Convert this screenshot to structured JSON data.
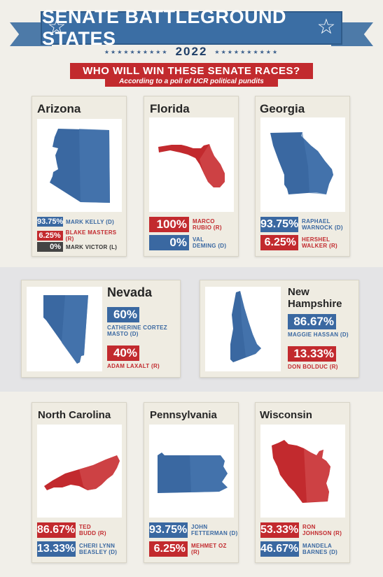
{
  "header": {
    "title": "SENATE BATTLEGROUND STATES",
    "year": "2022",
    "question": "WHO WILL WIN THESE SENATE RACES?",
    "subtitle": "According to a poll of UCR political pundits"
  },
  "colors": {
    "blue": "#3a68a1",
    "red": "#c22a2e",
    "dark": "#444444",
    "banner": "#3b6ea4"
  },
  "states": {
    "arizona": {
      "name": "Arizona",
      "winner_color": "blue",
      "candidates": [
        {
          "pct": "93.75%",
          "name": "MARK KELLY (D)",
          "color": "blue"
        },
        {
          "pct": "6.25%",
          "name": "BLAKE MASTERS (R)",
          "color": "red"
        },
        {
          "pct": "0%",
          "name": "MARK VICTOR (L)",
          "color": "dark"
        }
      ]
    },
    "florida": {
      "name": "Florida",
      "winner_color": "red",
      "candidates": [
        {
          "pct": "100%",
          "name_line1": "MARCO",
          "name_line2": "RUBIO (R)",
          "color": "red"
        },
        {
          "pct": "0%",
          "name_line1": "VAL",
          "name_line2": "DEMING (D)",
          "color": "blue"
        }
      ]
    },
    "georgia": {
      "name": "Georgia",
      "winner_color": "blue",
      "candidates": [
        {
          "pct": "93.75%",
          "name_line1": "RAPHAEL",
          "name_line2": "WARNOCK (D)",
          "color": "blue"
        },
        {
          "pct": "6.25%",
          "name_line1": "HERSHEL",
          "name_line2": "WALKER (R)",
          "color": "red"
        }
      ]
    },
    "nevada": {
      "name": "Nevada",
      "winner_color": "blue",
      "candidates": [
        {
          "pct": "60%",
          "name_line1": "CATHERINE CORTEZ",
          "name_line2": "MASTO (D)",
          "color": "blue"
        },
        {
          "pct": "40%",
          "name_line1": "ADAM LAXALT (R)",
          "name_line2": "",
          "color": "red"
        }
      ]
    },
    "new_hampshire": {
      "name_line1": "New",
      "name_line2": "Hampshire",
      "winner_color": "blue",
      "candidates": [
        {
          "pct": "86.67%",
          "name_line1": "MAGGIE HASSAN (D)",
          "color": "blue"
        },
        {
          "pct": "13.33%",
          "name_line1": "DON BOLDUC (R)",
          "color": "red"
        }
      ]
    },
    "north_carolina": {
      "name": "North Carolina",
      "winner_color": "red",
      "candidates": [
        {
          "pct": "86.67%",
          "name_line1": "TED",
          "name_line2": "BUDD (R)",
          "color": "red"
        },
        {
          "pct": "13.33%",
          "name_line1": "CHERI LYNN",
          "name_line2": "BEASLEY (D)",
          "color": "blue"
        }
      ]
    },
    "pennsylvania": {
      "name": "Pennsylvania",
      "winner_color": "blue",
      "candidates": [
        {
          "pct": "93.75%",
          "name_line1": "JOHN",
          "name_line2": "FETTERMAN (D)",
          "color": "blue"
        },
        {
          "pct": "6.25%",
          "name_line1": "MEHMET OZ",
          "name_line2": "(R)",
          "color": "red"
        }
      ]
    },
    "wisconsin": {
      "name": "Wisconsin",
      "winner_color": "red",
      "candidates": [
        {
          "pct": "53.33%",
          "name_line1": "RON",
          "name_line2": "JOHNSON (R)",
          "color": "red"
        },
        {
          "pct": "46.67%",
          "name_line1": "MANDELA",
          "name_line2": "BARNES (D)",
          "color": "blue"
        }
      ]
    }
  }
}
